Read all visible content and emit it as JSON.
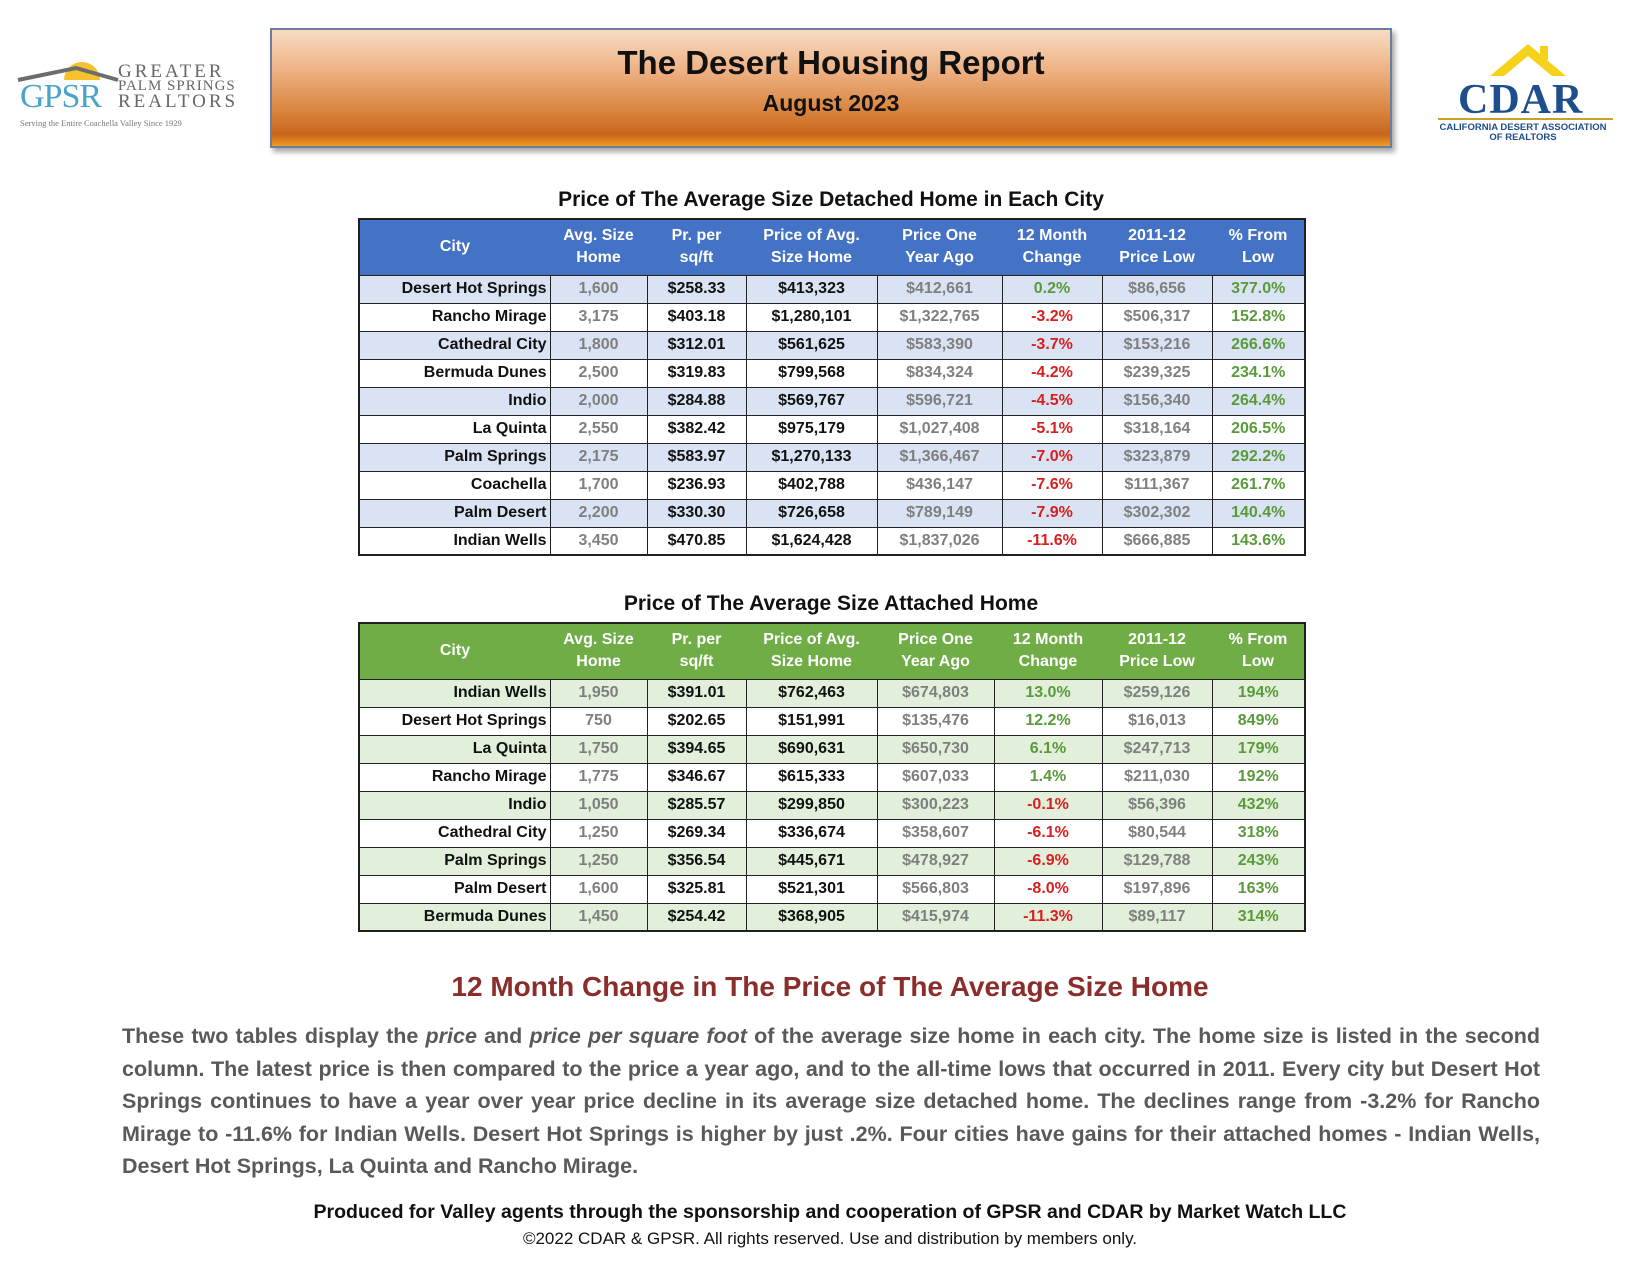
{
  "logos": {
    "gpsr": {
      "abbr": "GPSR",
      "line1": "GREATER",
      "line2": "PALM SPRINGS",
      "line3": "REALTORS",
      "tagline": "Serving the Entire Coachella Valley Since 1929"
    },
    "cdar": {
      "abbr": "CDAR",
      "line1": "CALIFORNIA DESERT ASSOCIATION",
      "line2": "OF REALTORS"
    }
  },
  "header": {
    "title": "The Desert Housing Report",
    "subtitle": "August 2023"
  },
  "columns": [
    [
      "City"
    ],
    [
      "Avg. Size",
      "Home"
    ],
    [
      "Pr. per",
      "sq/ft"
    ],
    [
      "Price of Avg.",
      "Size Home"
    ],
    [
      "Price One",
      "Year Ago"
    ],
    [
      "12 Month",
      "Change"
    ],
    [
      "2011-12",
      "Price Low"
    ],
    [
      "% From",
      "Low"
    ]
  ],
  "detached": {
    "title": "Price of The Average Size Detached Home in Each City",
    "header_color": "#4472c4",
    "band_color": "#dae3f3",
    "rows": [
      [
        "Desert Hot Springs",
        "1,600",
        "$258.33",
        "$413,323",
        "$412,661",
        "0.2%",
        "$86,656",
        "377.0%"
      ],
      [
        "Rancho Mirage",
        "3,175",
        "$403.18",
        "$1,280,101",
        "$1,322,765",
        "-3.2%",
        "$506,317",
        "152.8%"
      ],
      [
        "Cathedral City",
        "1,800",
        "$312.01",
        "$561,625",
        "$583,390",
        "-3.7%",
        "$153,216",
        "266.6%"
      ],
      [
        "Bermuda Dunes",
        "2,500",
        "$319.83",
        "$799,568",
        "$834,324",
        "-4.2%",
        "$239,325",
        "234.1%"
      ],
      [
        "Indio",
        "2,000",
        "$284.88",
        "$569,767",
        "$596,721",
        "-4.5%",
        "$156,340",
        "264.4%"
      ],
      [
        "La Quinta",
        "2,550",
        "$382.42",
        "$975,179",
        "$1,027,408",
        "-5.1%",
        "$318,164",
        "206.5%"
      ],
      [
        "Palm Springs",
        "2,175",
        "$583.97",
        "$1,270,133",
        "$1,366,467",
        "-7.0%",
        "$323,879",
        "292.2%"
      ],
      [
        "Coachella",
        "1,700",
        "$236.93",
        "$402,788",
        "$436,147",
        "-7.6%",
        "$111,367",
        "261.7%"
      ],
      [
        "Palm Desert",
        "2,200",
        "$330.30",
        "$726,658",
        "$789,149",
        "-7.9%",
        "$302,302",
        "140.4%"
      ],
      [
        "Indian Wells",
        "3,450",
        "$470.85",
        "$1,624,428",
        "$1,837,026",
        "-11.6%",
        "$666,885",
        "143.6%"
      ]
    ]
  },
  "attached": {
    "title": "Price of The Average Size Attached Home",
    "header_color": "#70ad47",
    "band_color": "#e2efda",
    "rows": [
      [
        "Indian Wells",
        "1,950",
        "$391.01",
        "$762,463",
        "$674,803",
        "13.0%",
        "$259,126",
        "194%"
      ],
      [
        "Desert Hot Springs",
        "750",
        "$202.65",
        "$151,991",
        "$135,476",
        "12.2%",
        "$16,013",
        "849%"
      ],
      [
        "La Quinta",
        "1,750",
        "$394.65",
        "$690,631",
        "$650,730",
        "6.1%",
        "$247,713",
        "179%"
      ],
      [
        "Rancho Mirage",
        "1,775",
        "$346.67",
        "$615,333",
        "$607,033",
        "1.4%",
        "$211,030",
        "192%"
      ],
      [
        "Indio",
        "1,050",
        "$285.57",
        "$299,850",
        "$300,223",
        "-0.1%",
        "$56,396",
        "432%"
      ],
      [
        "Cathedral City",
        "1,250",
        "$269.34",
        "$336,674",
        "$358,607",
        "-6.1%",
        "$80,544",
        "318%"
      ],
      [
        "Palm Springs",
        "1,250",
        "$356.54",
        "$445,671",
        "$478,927",
        "-6.9%",
        "$129,788",
        "243%"
      ],
      [
        "Palm Desert",
        "1,600",
        "$325.81",
        "$521,301",
        "$566,803",
        "-8.0%",
        "$197,896",
        "163%"
      ],
      [
        "Bermuda Dunes",
        "1,450",
        "$254.42",
        "$368,905",
        "$415,974",
        "-11.3%",
        "$89,117",
        "314%"
      ]
    ]
  },
  "commentary": {
    "heading": "12 Month Change in The Price of The Average Size Home",
    "p_part1": "These two tables display the ",
    "p_em1": "price",
    "p_part2": " and ",
    "p_em2": "price per square foot",
    "p_part3": " of the average size home in each city. The home size is listed in the second column. The latest price is then compared to the price a year ago, and to the all-time lows that occurred in 2011. Every city but Desert Hot Springs continues to have a year over year price decline in its average size detached home. The declines range from -3.2% for Rancho Mirage to -11.6% for Indian Wells. Desert Hot Springs is higher by just .2%. Four cities have gains for their attached homes - Indian Wells, Desert Hot Springs, La Quinta and Rancho Mirage."
  },
  "footer": {
    "line1": "Produced for Valley agents through the sponsorship and cooperation of GPSR and CDAR by Market Watch LLC",
    "line2": "©2022 CDAR & GPSR.  All rights reserved.  Use and distribution by members only."
  }
}
